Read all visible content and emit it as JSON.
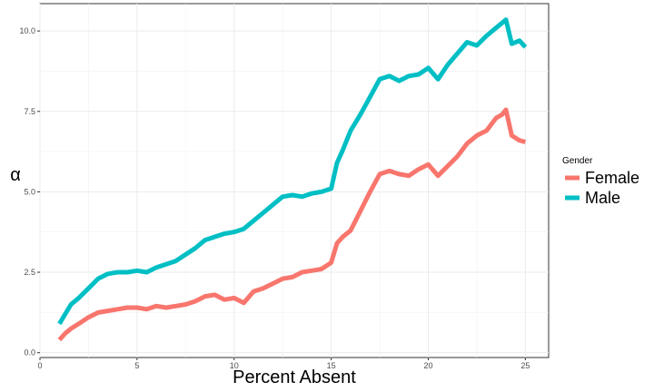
{
  "chart_data": {
    "type": "line",
    "title": "",
    "xlabel": "Percent Absent",
    "ylabel": "α",
    "xlim": [
      0,
      26.2
    ],
    "ylim": [
      -0.15,
      10.85
    ],
    "x_ticks": [
      0,
      5,
      10,
      15,
      20,
      25
    ],
    "x_tick_labels": [
      "0",
      "5",
      "10",
      "15",
      "20",
      "25"
    ],
    "y_ticks": [
      0,
      2.5,
      5,
      7.5,
      10
    ],
    "y_tick_labels": [
      "0.0",
      "2.5",
      "5.0",
      "7.5",
      "10.0"
    ],
    "grid": true,
    "legend": {
      "title": "Gender",
      "position": "right"
    },
    "series": [
      {
        "name": "Female",
        "color": "#F8766D",
        "x": [
          1.0,
          1.3,
          1.6,
          2.0,
          2.5,
          3.0,
          3.5,
          4.0,
          4.5,
          5.0,
          5.5,
          6.0,
          6.5,
          7.0,
          7.5,
          8.0,
          8.5,
          9.0,
          9.5,
          10.0,
          10.5,
          11.0,
          11.5,
          12.0,
          12.5,
          13.0,
          13.5,
          14.0,
          14.5,
          15.0,
          15.3,
          15.6,
          16.0,
          16.5,
          17.0,
          17.5,
          18.0,
          18.5,
          19.0,
          19.5,
          20.0,
          20.5,
          21.0,
          21.5,
          22.0,
          22.5,
          23.0,
          23.5,
          23.8,
          24.0,
          24.3,
          24.7,
          25.0
        ],
        "values": [
          0.4,
          0.6,
          0.75,
          0.9,
          1.1,
          1.25,
          1.3,
          1.35,
          1.4,
          1.4,
          1.35,
          1.45,
          1.4,
          1.45,
          1.5,
          1.6,
          1.75,
          1.8,
          1.65,
          1.7,
          1.55,
          1.9,
          2.0,
          2.15,
          2.3,
          2.35,
          2.5,
          2.55,
          2.6,
          2.8,
          3.4,
          3.6,
          3.8,
          4.4,
          5.0,
          5.55,
          5.65,
          5.55,
          5.5,
          5.7,
          5.85,
          5.5,
          5.8,
          6.1,
          6.5,
          6.75,
          6.9,
          7.3,
          7.4,
          7.55,
          6.75,
          6.6,
          6.55
        ]
      },
      {
        "name": "Male",
        "color": "#00BFC4",
        "x": [
          1.0,
          1.3,
          1.6,
          2.0,
          2.5,
          3.0,
          3.5,
          4.0,
          4.5,
          5.0,
          5.5,
          6.0,
          6.5,
          7.0,
          7.5,
          8.0,
          8.5,
          9.0,
          9.5,
          10.0,
          10.5,
          11.0,
          11.5,
          12.0,
          12.5,
          13.0,
          13.5,
          14.0,
          14.5,
          15.0,
          15.3,
          15.6,
          16.0,
          16.5,
          17.0,
          17.5,
          18.0,
          18.5,
          19.0,
          19.5,
          20.0,
          20.5,
          21.0,
          21.5,
          22.0,
          22.5,
          23.0,
          23.5,
          23.8,
          24.0,
          24.3,
          24.7,
          25.0
        ],
        "values": [
          0.9,
          1.2,
          1.5,
          1.7,
          2.0,
          2.3,
          2.45,
          2.5,
          2.5,
          2.55,
          2.5,
          2.65,
          2.75,
          2.85,
          3.05,
          3.25,
          3.5,
          3.6,
          3.7,
          3.75,
          3.85,
          4.1,
          4.35,
          4.6,
          4.85,
          4.9,
          4.85,
          4.95,
          5.0,
          5.1,
          5.9,
          6.3,
          6.9,
          7.4,
          7.95,
          8.5,
          8.6,
          8.45,
          8.6,
          8.65,
          8.85,
          8.5,
          8.95,
          9.3,
          9.65,
          9.55,
          9.85,
          10.1,
          10.25,
          10.35,
          9.6,
          9.7,
          9.5
        ]
      }
    ]
  }
}
